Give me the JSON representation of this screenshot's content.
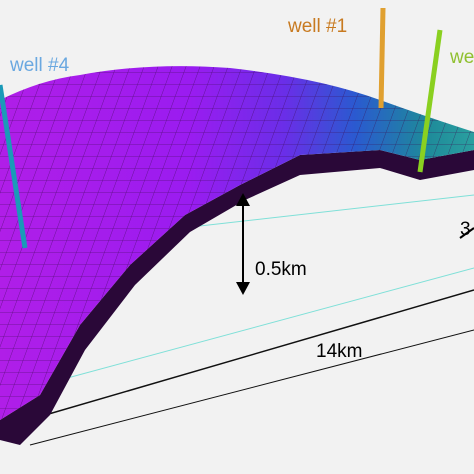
{
  "labels": {
    "well_4": "well #4",
    "well_1": "well #1",
    "well_2": "we",
    "thickness": "0.5km",
    "length": "14km",
    "width": "3"
  }
}
